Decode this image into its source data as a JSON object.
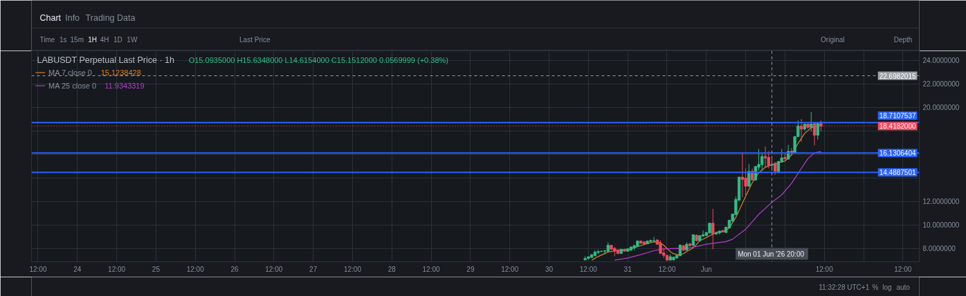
{
  "chart_data": {
    "type": "candlestick",
    "title": "LABUSDT Perpetual Last Price · 1h",
    "subtitle": "O15.0935000 H15.6348000 L14.6154000 C15.1512000 0.0569999 (+0.38%)",
    "x": [
      "2026-05-30T11:00",
      "2026-05-30T12:00",
      "2026-05-30T13:00",
      "2026-05-30T14:00",
      "2026-05-30T15:00",
      "2026-05-30T16:00",
      "2026-05-30T17:00",
      "2026-05-30T18:00",
      "2026-05-30T19:00",
      "2026-05-30T20:00",
      "2026-05-30T21:00",
      "2026-05-30T22:00",
      "2026-05-30T23:00",
      "2026-05-31T00:00",
      "2026-05-31T01:00",
      "2026-05-31T02:00",
      "2026-05-31T03:00",
      "2026-05-31T04:00",
      "2026-05-31T05:00",
      "2026-05-31T06:00",
      "2026-05-31T07:00",
      "2026-05-31T08:00",
      "2026-05-31T09:00",
      "2026-05-31T10:00",
      "2026-05-31T11:00",
      "2026-05-31T12:00",
      "2026-05-31T13:00",
      "2026-05-31T14:00",
      "2026-05-31T15:00",
      "2026-05-31T16:00",
      "2026-05-31T17:00",
      "2026-05-31T18:00",
      "2026-05-31T19:00",
      "2026-05-31T20:00",
      "2026-05-31T21:00",
      "2026-05-31T22:00",
      "2026-05-31T23:00",
      "2026-06-01T00:00",
      "2026-06-01T01:00",
      "2026-06-01T02:00",
      "2026-06-01T03:00",
      "2026-06-01T04:00",
      "2026-06-01T05:00",
      "2026-06-01T06:00",
      "2026-06-01T07:00",
      "2026-06-01T08:00",
      "2026-06-01T09:00",
      "2026-06-01T10:00",
      "2026-06-01T11:00",
      "2026-06-01T12:00",
      "2026-06-01T13:00",
      "2026-06-01T14:00",
      "2026-06-01T15:00",
      "2026-06-01T16:00",
      "2026-06-01T17:00",
      "2026-06-01T18:00",
      "2026-06-01T19:00",
      "2026-06-01T20:00",
      "2026-06-01T21:00",
      "2026-06-01T22:00",
      "2026-06-01T23:00",
      "2026-06-02T00:00",
      "2026-06-02T01:00",
      "2026-06-02T02:00",
      "2026-06-02T03:00",
      "2026-06-02T04:00",
      "2026-06-02T05:00",
      "2026-06-02T06:00",
      "2026-06-02T07:00",
      "2026-06-02T08:00",
      "2026-06-02T09:00",
      "2026-06-02T10:00",
      "2026-06-02T11:00"
    ],
    "ohlc": [
      [
        7.04,
        7.35,
        7.0,
        7.16
      ],
      [
        7.16,
        7.33,
        7.1,
        7.31
      ],
      [
        7.24,
        7.51,
        7.22,
        7.49
      ],
      [
        7.39,
        7.86,
        7.37,
        7.71
      ],
      [
        7.67,
        7.9,
        7.55,
        7.75
      ],
      [
        7.75,
        7.82,
        7.71,
        7.78
      ],
      [
        7.78,
        7.86,
        7.51,
        7.82
      ],
      [
        7.78,
        8.53,
        7.75,
        8.29
      ],
      [
        8.27,
        8.31,
        7.9,
        7.94
      ],
      [
        8.02,
        8.14,
        7.35,
        7.78
      ],
      [
        7.86,
        7.94,
        7.51,
        7.59
      ],
      [
        7.59,
        7.98,
        7.55,
        7.94
      ],
      [
        7.94,
        7.98,
        7.75,
        7.78
      ],
      [
        7.78,
        8.0,
        7.75,
        7.98
      ],
      [
        7.86,
        8.18,
        7.82,
        8.14
      ],
      [
        8.06,
        8.33,
        7.86,
        8.25
      ],
      [
        8.18,
        8.69,
        8.14,
        8.65
      ],
      [
        8.65,
        8.69,
        8.41,
        8.45
      ],
      [
        8.57,
        8.61,
        8.37,
        8.41
      ],
      [
        8.41,
        8.69,
        8.37,
        8.65
      ],
      [
        8.61,
        8.76,
        8.53,
        8.69
      ],
      [
        8.63,
        9.0,
        8.57,
        8.67
      ],
      [
        8.73,
        8.8,
        8.33,
        8.37
      ],
      [
        8.45,
        8.69,
        7.55,
        7.59
      ],
      [
        7.63,
        8.04,
        7.2,
        7.43
      ],
      [
        7.43,
        7.47,
        7.0,
        7.02
      ],
      [
        7.02,
        7.51,
        7.0,
        7.31
      ],
      [
        7.04,
        7.31,
        7.0,
        7.27
      ],
      [
        7.2,
        7.45,
        7.18,
        7.43
      ],
      [
        7.39,
        8.37,
        7.37,
        8.29
      ],
      [
        8.25,
        8.31,
        7.82,
        7.86
      ],
      [
        7.86,
        8.53,
        7.82,
        8.37
      ],
      [
        8.41,
        8.45,
        8.2,
        8.25
      ],
      [
        8.27,
        9.2,
        8.2,
        9.18
      ],
      [
        9.14,
        9.18,
        8.65,
        8.67
      ],
      [
        8.67,
        9.12,
        8.63,
        9.1
      ],
      [
        9.06,
        9.55,
        9.02,
        9.18
      ],
      [
        9.1,
        9.4,
        9.06,
        9.37
      ],
      [
        9.33,
        10.2,
        9.3,
        10.16
      ],
      [
        10.16,
        11.39,
        7.96,
        9.24
      ],
      [
        9.24,
        9.45,
        9.18,
        9.35
      ],
      [
        9.33,
        9.55,
        9.2,
        9.49
      ],
      [
        9.53,
        9.61,
        9.37,
        9.41
      ],
      [
        9.37,
        9.86,
        9.33,
        9.82
      ],
      [
        9.76,
        10.45,
        9.73,
        10.41
      ],
      [
        10.35,
        10.96,
        10.31,
        10.94
      ],
      [
        10.9,
        12.43,
        10.86,
        12.18
      ],
      [
        12.12,
        14.1,
        12.06,
        14.08
      ],
      [
        14.08,
        16.2,
        12.37,
        13.88
      ],
      [
        14.0,
        14.82,
        12.37,
        13.31
      ],
      [
        13.31,
        15.18,
        13.25,
        14.57
      ],
      [
        14.57,
        14.8,
        13.82,
        13.84
      ],
      [
        13.84,
        15.0,
        13.8,
        14.98
      ],
      [
        14.92,
        16.47,
        14.63,
        15.16
      ],
      [
        15.14,
        16.1,
        14.63,
        15.84
      ],
      [
        15.84,
        16.67,
        14.92,
        15.71
      ],
      [
        15.76,
        16.29,
        14.82,
        15.06
      ],
      [
        15.0935,
        15.6348,
        14.6154,
        15.1512
      ],
      [
        15.26,
        15.35,
        14.27,
        14.59
      ],
      [
        14.53,
        15.45,
        14.49,
        15.41
      ],
      [
        15.37,
        16.47,
        15.33,
        15.71
      ],
      [
        15.76,
        16.16,
        15.41,
        15.65
      ],
      [
        15.61,
        16.82,
        15.57,
        16.27
      ],
      [
        16.29,
        16.55,
        15.96,
        16.12
      ],
      [
        16.16,
        17.57,
        16.12,
        17.53
      ],
      [
        17.53,
        18.9,
        17.49,
        18.43
      ],
      [
        18.43,
        19.02,
        17.08,
        18.16
      ],
      [
        18.16,
        18.63,
        18.06,
        18.59
      ],
      [
        18.59,
        18.65,
        18.2,
        18.31
      ],
      [
        18.31,
        19.61,
        17.96,
        18.59
      ],
      [
        18.63,
        18.67,
        16.78,
        17.65
      ],
      [
        17.65,
        18.71,
        17.27,
        18.63
      ],
      [
        18.63,
        18.9,
        17.96,
        18.42
      ]
    ],
    "colors": [
      "#2ebd85",
      "#2ebd85",
      "#2ebd85",
      "#2ebd85",
      "#2ebd85",
      "#2ebd85",
      "#2ebd85",
      "#2ebd85",
      "#f6465d",
      "#f6465d",
      "#f6465d",
      "#2ebd85",
      "#f6465d",
      "#2ebd85",
      "#2ebd85",
      "#2ebd85",
      "#2ebd85",
      "#f6465d",
      "#f6465d",
      "#2ebd85",
      "#2ebd85",
      "#2ebd85",
      "#f6465d",
      "#f6465d",
      "#f6465d",
      "#f6465d",
      "#2ebd85",
      "#2ebd85",
      "#2ebd85",
      "#2ebd85",
      "#f6465d",
      "#2ebd85",
      "#f6465d",
      "#2ebd85",
      "#f6465d",
      "#2ebd85",
      "#2ebd85",
      "#2ebd85",
      "#2ebd85",
      "#f6465d",
      "#2ebd85",
      "#2ebd85",
      "#f6465d",
      "#2ebd85",
      "#2ebd85",
      "#2ebd85",
      "#2ebd85",
      "#2ebd85",
      "#f6465d",
      "#f6465d",
      "#2ebd85",
      "#f6465d",
      "#2ebd85",
      "#2ebd85",
      "#2ebd85",
      "#f6465d",
      "#f6465d",
      "#2ebd85",
      "#f6465d",
      "#2ebd85",
      "#2ebd85",
      "#f6465d",
      "#2ebd85",
      "#f6465d",
      "#2ebd85",
      "#2ebd85",
      "#f6465d",
      "#2ebd85",
      "#f6465d",
      "#2ebd85",
      "#f6465d",
      "#2ebd85",
      "#f6465d"
    ],
    "series": [
      {
        "type": "line",
        "name": "MA 7 close 0",
        "color": "#d9822b",
        "x": [
          "2026-05-30T13:00",
          "2026-05-30T15:00",
          "2026-05-30T18:00",
          "2026-05-30T21:00",
          "2026-05-31T00:00",
          "2026-05-31T03:00",
          "2026-05-31T06:00",
          "2026-05-31T08:00",
          "2026-05-31T10:00",
          "2026-05-31T11:00",
          "2026-05-31T13:00",
          "2026-05-31T14:00",
          "2026-05-31T16:00",
          "2026-05-31T17:00",
          "2026-05-31T18:00",
          "2026-05-31T20:00",
          "2026-05-31T22:00",
          "2026-06-01T00:00",
          "2026-06-01T03:00",
          "2026-06-01T05:00",
          "2026-06-01T07:00",
          "2026-06-01T09:00",
          "2026-06-01T12:00",
          "2026-06-01T14:00",
          "2026-06-01T16:00",
          "2026-06-01T18:00",
          "2026-06-01T20:00",
          "2026-06-01T22:00",
          "2026-06-02T00:00",
          "2026-06-02T02:00",
          "2026-06-02T04:00",
          "2026-06-02T06:00",
          "2026-06-02T08:00",
          "2026-06-02T11:00"
        ],
        "values": [
          7.02,
          7.33,
          7.71,
          7.86,
          7.9,
          8.16,
          8.43,
          8.57,
          8.52,
          8.28,
          7.74,
          7.56,
          7.45,
          7.57,
          7.75,
          8.06,
          8.67,
          8.94,
          9.37,
          9.43,
          9.75,
          10.65,
          12.45,
          13.6,
          14.45,
          14.92,
          15.12,
          15.3,
          15.45,
          15.95,
          16.95,
          17.8,
          18.28,
          18.47
        ]
      },
      {
        "type": "line",
        "name": "MA 25 close 0",
        "color": "#b63cd0",
        "x": [
          "2026-05-30T20:00",
          "2026-05-31T00:00",
          "2026-05-31T04:00",
          "2026-05-31T08:00",
          "2026-05-31T11:00",
          "2026-05-31T15:00",
          "2026-05-31T18:00",
          "2026-05-31T21:00",
          "2026-06-01T00:00",
          "2026-06-01T06:00",
          "2026-06-01T08:00",
          "2026-06-01T12:00",
          "2026-06-01T16:00",
          "2026-06-01T20:00",
          "2026-06-01T23:00",
          "2026-06-02T02:00",
          "2026-06-02T05:00",
          "2026-06-02T07:00",
          "2026-06-02T09:00",
          "2026-06-02T11:00"
        ],
        "values": [
          7.02,
          7.2,
          7.49,
          7.82,
          7.98,
          8.02,
          8.0,
          8.18,
          8.37,
          8.59,
          8.8,
          9.65,
          10.92,
          11.93,
          12.57,
          13.55,
          14.82,
          15.65,
          16.14,
          16.25
        ]
      }
    ],
    "xlim": [
      "2026-05-23T10:00",
      "2026-06-03T17:00"
    ],
    "xticks": [
      {
        "value": "2026-05-23T12:00",
        "label": "12:00"
      },
      {
        "value": "2026-05-24",
        "label": "24"
      },
      {
        "value": "2026-05-24T12:00",
        "label": "12:00"
      },
      {
        "value": "2026-05-25",
        "label": "25"
      },
      {
        "value": "2026-05-25T12:00",
        "label": "12:00"
      },
      {
        "value": "2026-05-26",
        "label": "26"
      },
      {
        "value": "2026-05-26T12:00",
        "label": "12:00"
      },
      {
        "value": "2026-05-27",
        "label": "27"
      },
      {
        "value": "2026-05-27T12:00",
        "label": "12:00"
      },
      {
        "value": "2026-05-28",
        "label": "28"
      },
      {
        "value": "2026-05-28T12:00",
        "label": "12:00"
      },
      {
        "value": "2026-05-29",
        "label": "29"
      },
      {
        "value": "2026-05-29T12:00",
        "label": "12:00"
      },
      {
        "value": "2026-05-30",
        "label": "30"
      },
      {
        "value": "2026-05-30T12:00",
        "label": "12:00"
      },
      {
        "value": "2026-05-31",
        "label": "31"
      },
      {
        "value": "2026-05-31T12:00",
        "label": "12:00"
      },
      {
        "value": "2026-06-01",
        "label": "Jun"
      },
      {
        "value": "2026-06-01T12:00",
        "label": null
      },
      {
        "value": "2026-06-02",
        "label": null
      },
      {
        "value": "2026-06-02T12:00",
        "label": "12:00"
      },
      {
        "value": "2026-06-03",
        "label": null
      },
      {
        "value": "2026-06-03T12:00",
        "label": "12:00"
      }
    ],
    "ylim": [
      6.88,
      24.82
    ],
    "yticks": [
      {
        "value": 8,
        "label": "8.0000000"
      },
      {
        "value": 10,
        "label": "10.0000000"
      },
      {
        "value": 12,
        "label": "12.0000000"
      },
      {
        "value": 14,
        "label": null
      },
      {
        "value": 16,
        "label": null
      },
      {
        "value": 18,
        "label": null
      },
      {
        "value": 20,
        "label": "20.0000000"
      },
      {
        "value": 22,
        "label": "22.0000000"
      },
      {
        "value": 24,
        "label": "24.0000000"
      }
    ],
    "grid": true,
    "legend": "top left",
    "ref_lines": [
      {
        "axis": "y",
        "value": 18.7107537,
        "label": "18.7107537",
        "color": "#2962ff"
      },
      {
        "axis": "y",
        "value": 16.1306404,
        "label": "16.1306404",
        "color": "#2962ff"
      },
      {
        "axis": "y",
        "value": 14.4887501,
        "label": "14.4887501",
        "color": "#2962ff"
      },
      {
        "axis": "y",
        "value": 18.4182,
        "label": "18.4182000",
        "color": "#f6465d",
        "line_style": "dotted"
      },
      {
        "axis": "y",
        "value": 22.6982015,
        "label": "22.6982015",
        "color": "#9aa0a8",
        "line_style": "dashed"
      },
      {
        "axis": "x",
        "value": "2026-06-01T20:00",
        "label": "Mon 01 Jun '26  20:00",
        "color": "#9aa0a8",
        "line_style": "dashed"
      }
    ],
    "annotations": [
      "15.1238428",
      "11.9343319",
      "Chart",
      "Info",
      "Trading Data",
      "Time",
      "1s",
      "15m",
      "1H",
      "4H",
      "1D",
      "1W",
      "Last Price",
      "Original",
      "Depth",
      "11:32:28 UTC+1",
      "%",
      "log",
      "auto"
    ]
  }
}
